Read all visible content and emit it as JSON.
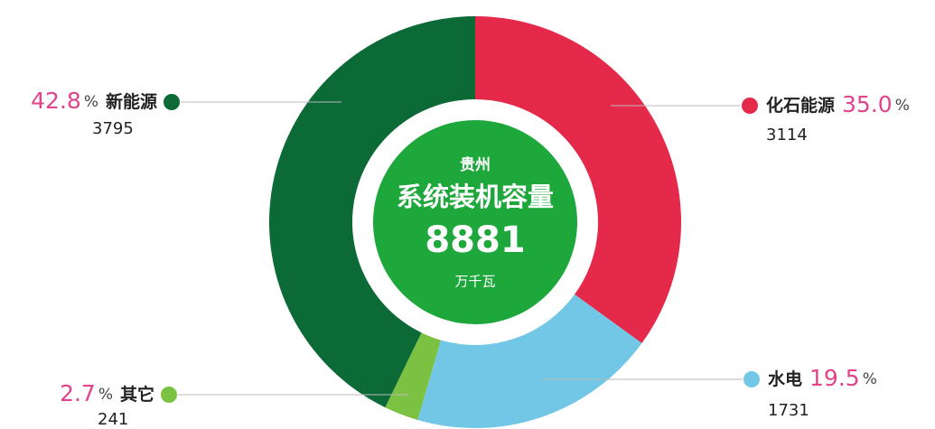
{
  "chart_data": {
    "type": "donut",
    "center_title": "贵州",
    "center_subtitle": "系统装机容量",
    "total": 8881,
    "total_unit": "万千瓦",
    "categories": [
      "化石能源",
      "水电",
      "其它",
      "新能源"
    ],
    "values": [
      35.0,
      19.5,
      2.7,
      42.8
    ],
    "value_labels": [
      "35.0",
      "19.5",
      "2.7",
      "42.8"
    ],
    "unit": "%",
    "amounts": [
      3114,
      1731,
      241,
      3795
    ],
    "colors": [
      "#e4294b",
      "#72c7e7",
      "#7cc242",
      "#0b6a36"
    ]
  }
}
